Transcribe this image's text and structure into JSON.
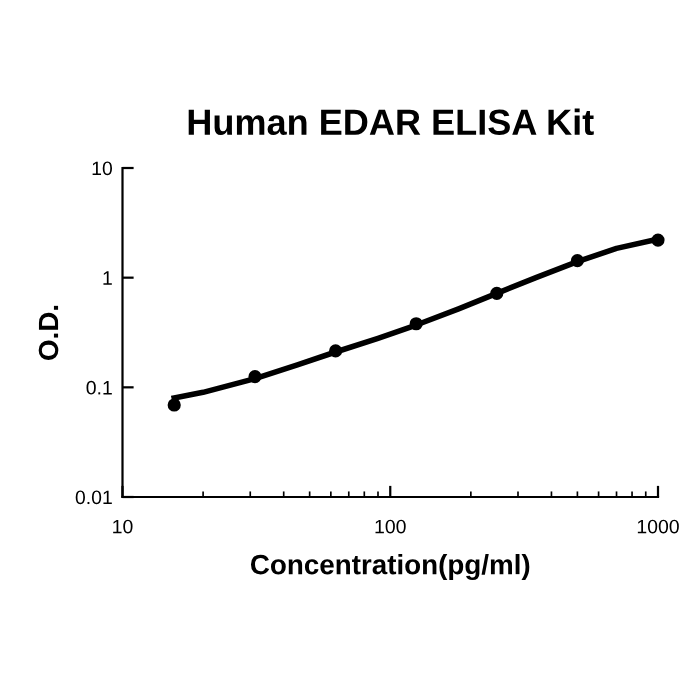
{
  "chart_data": {
    "type": "scatter",
    "title": "Human EDAR ELISA Kit",
    "xlabel": "Concentration(pg/ml)",
    "ylabel": "O.D.",
    "log": "xy",
    "xlim": [
      10,
      1000
    ],
    "xticks": [
      10,
      100,
      1000
    ],
    "ylim": [
      0.01,
      10
    ],
    "yticks": [
      0.01,
      0.1,
      1,
      10
    ],
    "grid": false,
    "legend": false,
    "series": [
      {
        "marker": "circle",
        "color": "#000000",
        "x": [
          15.6,
          31.25,
          62.5,
          125,
          250,
          500,
          1000
        ],
        "values": [
          0.069,
          0.125,
          0.215,
          0.38,
          0.72,
          1.43,
          2.2
        ]
      },
      {
        "type": "line",
        "color": "#000000",
        "line_style": "solid",
        "x": [
          15.6,
          20,
          31.25,
          45,
          62.5,
          90,
          125,
          180,
          250,
          350,
          500,
          700,
          1000
        ],
        "values": [
          0.08,
          0.09,
          0.12,
          0.16,
          0.21,
          0.28,
          0.37,
          0.52,
          0.72,
          1.0,
          1.4,
          1.85,
          2.25
        ]
      }
    ]
  }
}
